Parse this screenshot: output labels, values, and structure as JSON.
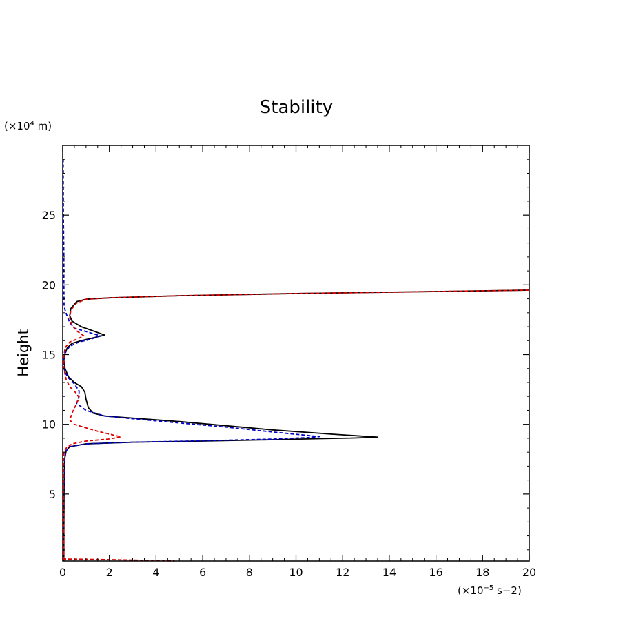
{
  "chart_data": {
    "type": "line",
    "title": "Stability",
    "ylabel": "Height",
    "x_unit_prefix": "(×10",
    "x_unit_exp": "−5",
    "x_unit_suffix": " s−2)",
    "y_unit_prefix": "(×10",
    "y_unit_exp": "4",
    "y_unit_suffix": " m)",
    "xlim": [
      0,
      20
    ],
    "ylim": [
      0.2,
      30
    ],
    "x_ticks": [
      0,
      2,
      4,
      6,
      8,
      10,
      12,
      14,
      16,
      18,
      20
    ],
    "x_tick_labels": [
      "0",
      "2",
      "4",
      "6",
      "8",
      "10",
      "12",
      "14",
      "16",
      "18",
      "20"
    ],
    "y_ticks": [
      5,
      10,
      15,
      20,
      25
    ],
    "y_tick_labels": [
      "5",
      "10",
      "15",
      "20",
      "25"
    ],
    "grid": false,
    "series": [
      {
        "color": "#000000",
        "dash": "solid",
        "points": [
          [
            0.05,
            0.2
          ],
          [
            0.05,
            2
          ],
          [
            0.06,
            5
          ],
          [
            0.08,
            7.5
          ],
          [
            0.15,
            8.1
          ],
          [
            0.3,
            8.4
          ],
          [
            1.0,
            8.6
          ],
          [
            3.0,
            8.72
          ],
          [
            6.0,
            8.8
          ],
          [
            9.0,
            8.9
          ],
          [
            11.0,
            8.97
          ],
          [
            12.5,
            9.02
          ],
          [
            13.5,
            9.08
          ],
          [
            11.5,
            9.3
          ],
          [
            9.0,
            9.6
          ],
          [
            7.0,
            9.9
          ],
          [
            5.0,
            10.2
          ],
          [
            3.0,
            10.45
          ],
          [
            1.8,
            10.6
          ],
          [
            1.3,
            10.8
          ],
          [
            1.1,
            11.2
          ],
          [
            1.0,
            11.8
          ],
          [
            0.95,
            12.3
          ],
          [
            0.8,
            12.7
          ],
          [
            0.5,
            13.0
          ],
          [
            0.25,
            13.4
          ],
          [
            0.1,
            14.0
          ],
          [
            0.05,
            14.6
          ],
          [
            0.1,
            15.1
          ],
          [
            0.2,
            15.5
          ],
          [
            0.4,
            15.8
          ],
          [
            0.8,
            16.0
          ],
          [
            1.3,
            16.2
          ],
          [
            1.8,
            16.4
          ],
          [
            1.3,
            16.7
          ],
          [
            0.8,
            17.0
          ],
          [
            0.4,
            17.4
          ],
          [
            0.3,
            17.8
          ],
          [
            0.35,
            18.3
          ],
          [
            0.6,
            18.8
          ],
          [
            1.0,
            18.97
          ],
          [
            2.0,
            19.07
          ],
          [
            5.0,
            19.22
          ],
          [
            10.0,
            19.38
          ],
          [
            15.0,
            19.5
          ],
          [
            20.0,
            19.62
          ]
        ]
      },
      {
        "color": "#0000cc",
        "dash": "dashed",
        "points": [
          [
            0.02,
            0.2
          ],
          [
            0.03,
            2
          ],
          [
            0.05,
            5
          ],
          [
            0.08,
            7.5
          ],
          [
            0.15,
            8.1
          ],
          [
            0.3,
            8.4
          ],
          [
            1.0,
            8.6
          ],
          [
            3.0,
            8.72
          ],
          [
            6.0,
            8.82
          ],
          [
            9.0,
            8.94
          ],
          [
            10.5,
            9.05
          ],
          [
            11.0,
            9.12
          ],
          [
            9.0,
            9.45
          ],
          [
            7.0,
            9.8
          ],
          [
            5.0,
            10.1
          ],
          [
            3.0,
            10.4
          ],
          [
            1.8,
            10.6
          ],
          [
            1.0,
            11.0
          ],
          [
            0.6,
            11.5
          ],
          [
            0.7,
            12.0
          ],
          [
            0.7,
            12.4
          ],
          [
            0.5,
            12.9
          ],
          [
            0.2,
            13.4
          ],
          [
            0.05,
            14.0
          ],
          [
            0.04,
            14.6
          ],
          [
            0.1,
            15.1
          ],
          [
            0.3,
            15.6
          ],
          [
            0.7,
            15.9
          ],
          [
            1.2,
            16.1
          ],
          [
            1.6,
            16.35
          ],
          [
            1.0,
            16.65
          ],
          [
            0.5,
            16.9
          ],
          [
            0.3,
            17.3
          ],
          [
            0.2,
            17.7
          ],
          [
            0.1,
            18.2
          ],
          [
            0.06,
            18.5
          ],
          [
            0.05,
            20
          ],
          [
            0.05,
            22
          ],
          [
            0.03,
            25
          ],
          [
            0.02,
            29
          ]
        ]
      },
      {
        "color": "#dd0000",
        "dash": "dashed",
        "points": [
          [
            0.05,
            0.25
          ],
          [
            0.05,
            2
          ],
          [
            0.04,
            5
          ],
          [
            0.04,
            7.5
          ],
          [
            0.06,
            8.0
          ],
          [
            0.15,
            8.3
          ],
          [
            0.4,
            8.6
          ],
          [
            1.0,
            8.8
          ],
          [
            2.0,
            8.95
          ],
          [
            2.5,
            9.1
          ],
          [
            2.0,
            9.3
          ],
          [
            1.5,
            9.5
          ],
          [
            1.0,
            9.75
          ],
          [
            0.5,
            10.0
          ],
          [
            0.3,
            10.3
          ],
          [
            0.4,
            10.8
          ],
          [
            0.6,
            11.5
          ],
          [
            0.7,
            11.9
          ],
          [
            0.6,
            12.2
          ],
          [
            0.3,
            12.7
          ],
          [
            0.15,
            13.2
          ],
          [
            0.05,
            14.0
          ],
          [
            0.05,
            14.8
          ],
          [
            0.1,
            15.5
          ],
          [
            0.3,
            15.9
          ],
          [
            0.6,
            16.1
          ],
          [
            0.9,
            16.35
          ],
          [
            0.6,
            16.7
          ],
          [
            0.4,
            17.1
          ],
          [
            0.3,
            17.6
          ],
          [
            0.35,
            18.2
          ],
          [
            0.6,
            18.7
          ],
          [
            1.0,
            18.97
          ],
          [
            2.0,
            19.07
          ],
          [
            5.0,
            19.22
          ],
          [
            10.0,
            19.38
          ],
          [
            15.0,
            19.5
          ],
          [
            20.0,
            19.62
          ]
        ]
      },
      {
        "color": "#dd0000",
        "dash": "dashed",
        "points": [
          [
            0.0,
            0.35
          ],
          [
            1.0,
            0.33
          ],
          [
            2.0,
            0.3
          ],
          [
            3.0,
            0.27
          ],
          [
            4.0,
            0.23
          ],
          [
            4.8,
            0.2
          ]
        ]
      }
    ]
  }
}
